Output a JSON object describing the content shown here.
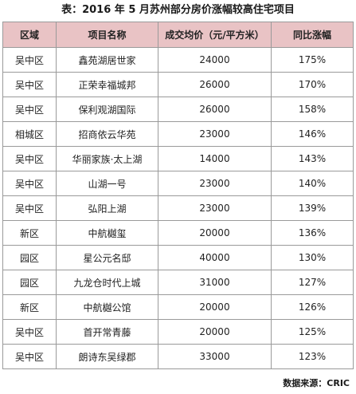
{
  "title": "表：2016 年 5 月苏州部分房价涨幅较高住宅项目",
  "colors": {
    "header_bg": "#e9c3c5",
    "border": "#9a9a9a"
  },
  "table": {
    "headers": [
      "区域",
      "项目名称",
      "成交均价（元/平方米）",
      "同比涨幅"
    ],
    "rows": [
      [
        "吴中区",
        "鑫苑湖居世家",
        "24000",
        "175%"
      ],
      [
        "吴中区",
        "正荣幸福城邦",
        "26000",
        "170%"
      ],
      [
        "吴中区",
        "保利观湖国际",
        "26000",
        "158%"
      ],
      [
        "相城区",
        "招商依云华苑",
        "23000",
        "146%"
      ],
      [
        "吴中区",
        "华丽家族·太上湖",
        "14000",
        "143%"
      ],
      [
        "吴中区",
        "山湖一号",
        "23000",
        "140%"
      ],
      [
        "吴中区",
        "弘阳上湖",
        "23000",
        "139%"
      ],
      [
        "新区",
        "中航樾玺",
        "20000",
        "136%"
      ],
      [
        "园区",
        "星公元名邸",
        "40000",
        "130%"
      ],
      [
        "园区",
        "九龙仓时代上城",
        "31000",
        "127%"
      ],
      [
        "新区",
        "中航樾公馆",
        "20000",
        "126%"
      ],
      [
        "吴中区",
        "首开常青藤",
        "20000",
        "125%"
      ],
      [
        "吴中区",
        "朗诗东吴绿郡",
        "33000",
        "123%"
      ]
    ]
  },
  "source": "数据来源：CRIC"
}
